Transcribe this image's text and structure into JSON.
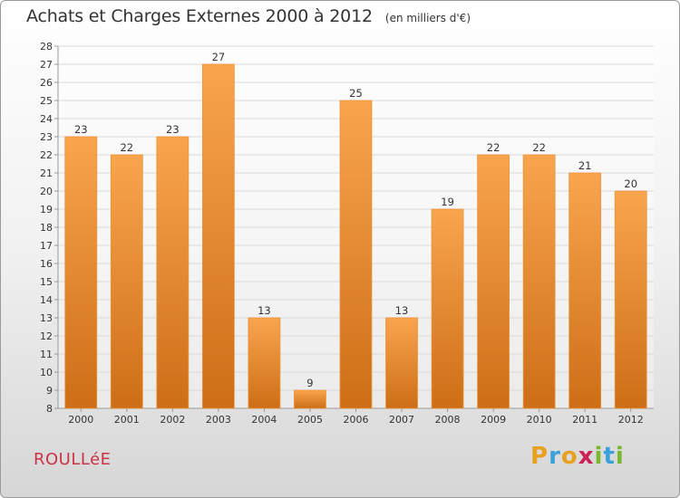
{
  "title": "Achats et Charges Externes 2000 à 2012",
  "subtitle": "(en milliers d'€)",
  "commune": "ROULLéE",
  "brand": {
    "text": "Proxiti",
    "letters": [
      {
        "ch": "P",
        "color": "#e8a020"
      },
      {
        "ch": "r",
        "color": "#3aa0d8"
      },
      {
        "ch": "o",
        "color": "#e8a020"
      },
      {
        "ch": "x",
        "color": "#cc2255"
      },
      {
        "ch": "i",
        "color": "#7ab830"
      },
      {
        "ch": "t",
        "color": "#3aa0d8"
      },
      {
        "ch": "i",
        "color": "#7ab830"
      }
    ]
  },
  "colors": {
    "bar_top": "#f9a54e",
    "bar_bottom": "#cd6e16",
    "grid": "#d9d9d9",
    "axis": "#999999"
  },
  "chart_data": {
    "type": "bar",
    "title": "Achats et Charges Externes 2000 à 2012",
    "subtitle": "(en milliers d'€)",
    "categories": [
      "2000",
      "2001",
      "2002",
      "2003",
      "2004",
      "2005",
      "2006",
      "2007",
      "2008",
      "2009",
      "2010",
      "2011",
      "2012"
    ],
    "values": [
      23,
      22,
      23,
      27,
      13,
      9,
      25,
      13,
      19,
      22,
      22,
      21,
      20
    ],
    "ylim": [
      8,
      28
    ],
    "yticks": [
      8,
      9,
      10,
      11,
      12,
      13,
      14,
      15,
      16,
      17,
      18,
      19,
      20,
      21,
      22,
      23,
      24,
      25,
      26,
      27,
      28
    ],
    "grid": true,
    "data_labels": true
  }
}
